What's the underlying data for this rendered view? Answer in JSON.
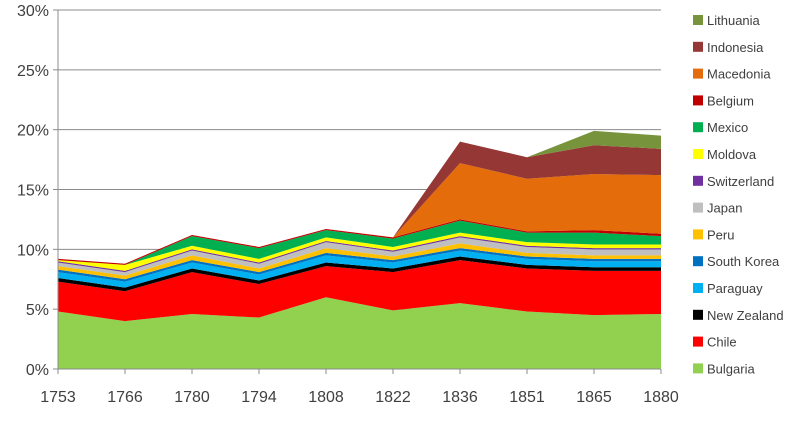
{
  "chart_data": {
    "type": "area",
    "stacked": true,
    "title": "",
    "xlabel": "",
    "ylabel": "",
    "x": [
      1753,
      1766,
      1780,
      1794,
      1808,
      1822,
      1836,
      1851,
      1865,
      1880
    ],
    "ylim": [
      0,
      30
    ],
    "y_ticks": [
      0,
      5,
      10,
      15,
      20,
      25,
      30
    ],
    "y_tick_suffix": "%",
    "grid": "horizontal",
    "legend_position": "right",
    "series": [
      {
        "name": "Bulgaria",
        "color": "#92d050",
        "values": [
          4.8,
          4.0,
          4.6,
          4.3,
          6.0,
          4.9,
          5.5,
          4.8,
          4.5,
          4.6
        ]
      },
      {
        "name": "Chile",
        "color": "#ff0000",
        "values": [
          2.5,
          2.5,
          3.5,
          2.8,
          2.6,
          3.2,
          3.6,
          3.6,
          3.7,
          3.6
        ]
      },
      {
        "name": "New Zealand",
        "color": "#000000",
        "values": [
          0.3,
          0.3,
          0.3,
          0.3,
          0.3,
          0.3,
          0.3,
          0.3,
          0.3,
          0.3
        ]
      },
      {
        "name": "Paraguay",
        "color": "#00b0f0",
        "values": [
          0.5,
          0.5,
          0.5,
          0.5,
          0.6,
          0.5,
          0.5,
          0.5,
          0.5,
          0.5
        ]
      },
      {
        "name": "South Korea",
        "color": "#0070c0",
        "values": [
          0.2,
          0.2,
          0.2,
          0.2,
          0.2,
          0.2,
          0.2,
          0.2,
          0.2,
          0.2
        ]
      },
      {
        "name": "Peru",
        "color": "#ffc000",
        "values": [
          0.3,
          0.3,
          0.4,
          0.3,
          0.4,
          0.3,
          0.4,
          0.3,
          0.3,
          0.3
        ]
      },
      {
        "name": "Japan",
        "color": "#bfbfbf",
        "values": [
          0.3,
          0.3,
          0.4,
          0.4,
          0.5,
          0.4,
          0.5,
          0.5,
          0.5,
          0.5
        ]
      },
      {
        "name": "Switzerland",
        "color": "#7030a0",
        "values": [
          0.1,
          0.1,
          0.1,
          0.1,
          0.1,
          0.1,
          0.1,
          0.1,
          0.1,
          0.1
        ]
      },
      {
        "name": "Moldova",
        "color": "#ffff00",
        "values": [
          0.1,
          0.5,
          0.3,
          0.3,
          0.3,
          0.3,
          0.3,
          0.3,
          0.3,
          0.3
        ]
      },
      {
        "name": "Mexico",
        "color": "#00b050",
        "values": [
          0.0,
          0.0,
          0.8,
          0.9,
          0.6,
          0.7,
          1.0,
          0.8,
          1.0,
          0.7
        ]
      },
      {
        "name": "Belgium",
        "color": "#c00000",
        "values": [
          0.1,
          0.1,
          0.1,
          0.1,
          0.1,
          0.1,
          0.1,
          0.1,
          0.2,
          0.2
        ]
      },
      {
        "name": "Macedonia",
        "color": "#e46c0a",
        "values": [
          0,
          0,
          0,
          0,
          0,
          0,
          4.7,
          4.4,
          4.7,
          4.9
        ]
      },
      {
        "name": "Indonesia",
        "color": "#953735",
        "values": [
          0,
          0,
          0,
          0,
          0,
          0,
          1.8,
          1.8,
          2.4,
          2.2
        ]
      },
      {
        "name": "Lithuania",
        "color": "#77933c",
        "values": [
          0,
          0,
          0,
          0,
          0,
          0,
          0,
          0,
          1.2,
          1.1
        ]
      }
    ]
  }
}
